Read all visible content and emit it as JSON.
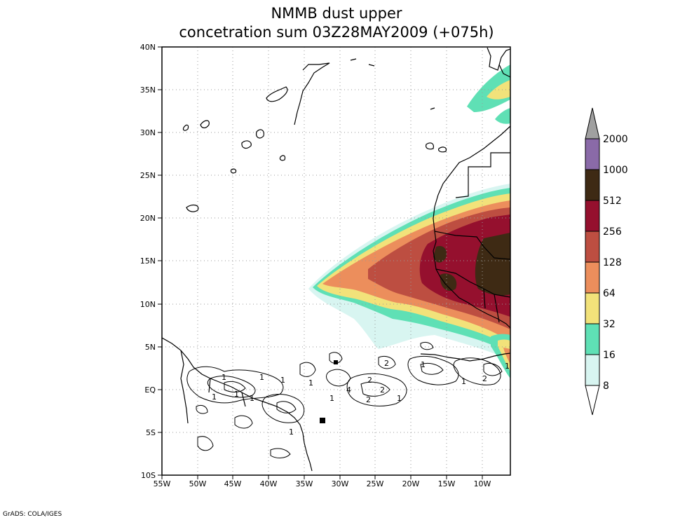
{
  "title": {
    "line1": "NMMB dust upper",
    "line2": "concetration sum 03Z28MAY2009 (+075h)"
  },
  "map": {
    "lon_labels": [
      "55W",
      "50W",
      "45W",
      "40W",
      "35W",
      "30W",
      "25W",
      "20W",
      "15W",
      "10W"
    ],
    "lat_labels": [
      "40N",
      "35N",
      "30N",
      "25N",
      "20N",
      "15N",
      "10N",
      "5N",
      "EQ",
      "5S",
      "10S"
    ],
    "lon_range": [
      -55,
      -6
    ],
    "lat_range": [
      -10,
      40
    ],
    "grid": true,
    "contour_labels": [
      "1",
      "1",
      "1",
      "1",
      "1",
      "2",
      "2",
      "2",
      "4",
      "1",
      "1",
      "1",
      "2",
      "1",
      "1",
      "1",
      "2",
      "1",
      "1"
    ]
  },
  "colorbar": {
    "levels": [
      "8",
      "16",
      "32",
      "64",
      "128",
      "256",
      "512",
      "1000",
      "2000"
    ],
    "colors": [
      "#d8f5f1",
      "#5fe0b5",
      "#f2e27a",
      "#ec8e5c",
      "#bd4e41",
      "#95102e",
      "#3e2a14",
      "#8a6aa8",
      "#a0a0a0"
    ],
    "placement": "right"
  },
  "credit": "GrADS: COLA/IGES"
}
